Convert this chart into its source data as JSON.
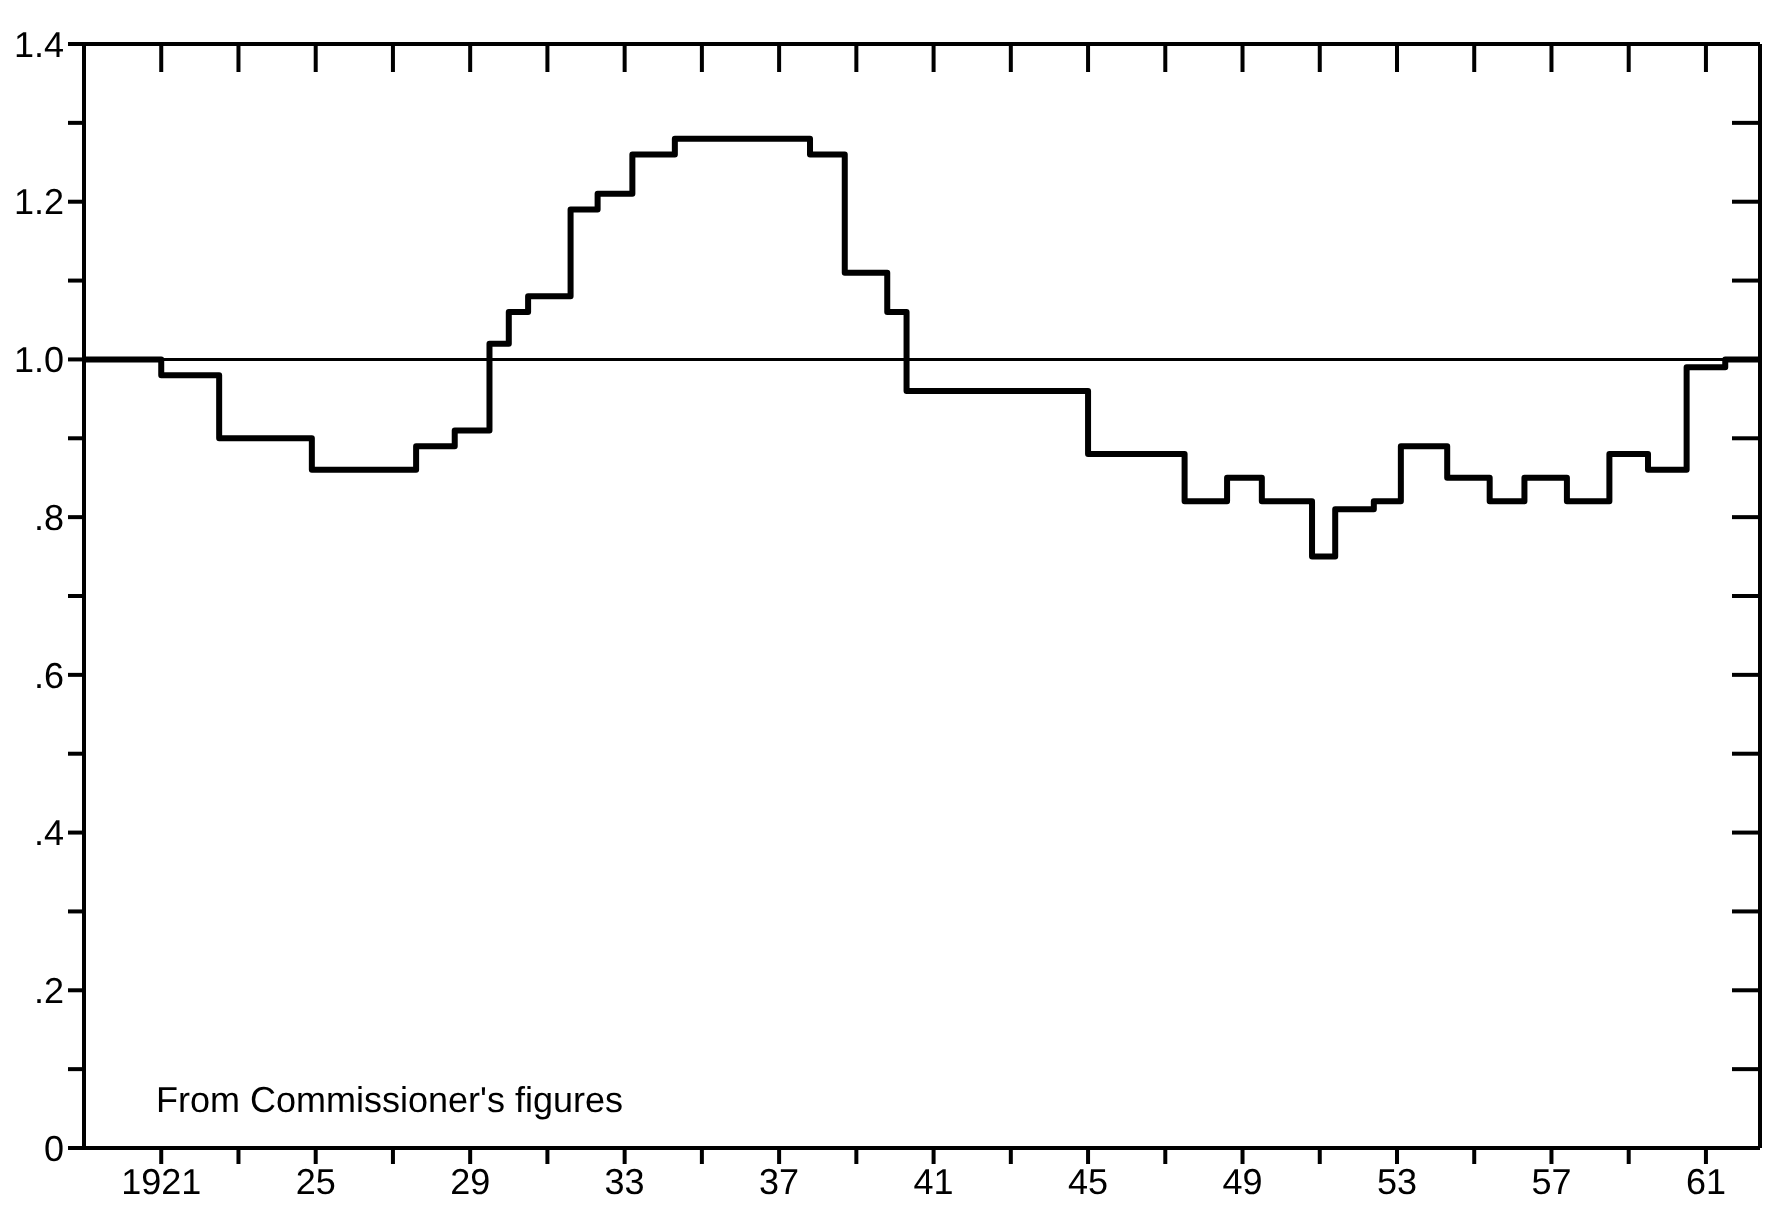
{
  "chart_data": {
    "type": "step",
    "color": "#000000",
    "x": [
      1919,
      1921,
      1922.5,
      1924.9,
      1927.6,
      1928.6,
      1929.5,
      1930,
      1930.5,
      1931.6,
      1932.3,
      1933.2,
      1934.3,
      1937.8,
      1938.7,
      1939.8,
      1940.3,
      1945,
      1947.5,
      1948.6,
      1949.5,
      1950.8,
      1951.4,
      1952.4,
      1953.1,
      1954.3,
      1955.4,
      1956.3,
      1957.4,
      1958.5,
      1959.5,
      1960.5,
      1961.5,
      1962.4
    ],
    "values": [
      1.0,
      0.98,
      0.9,
      0.86,
      0.89,
      0.91,
      1.02,
      1.06,
      1.08,
      1.19,
      1.21,
      1.26,
      1.28,
      1.26,
      1.11,
      1.06,
      0.96,
      0.88,
      0.82,
      0.85,
      0.82,
      0.75,
      0.81,
      0.82,
      0.89,
      0.85,
      0.82,
      0.85,
      0.82,
      0.88,
      0.86,
      0.99,
      1.0,
      1.0
    ],
    "xlim": [
      1919,
      1962.4
    ],
    "xticks": [
      {
        "value": 1921,
        "label": "1921"
      },
      {
        "value": 1923,
        "label": null
      },
      {
        "value": 1925,
        "label": "25"
      },
      {
        "value": 1927,
        "label": null
      },
      {
        "value": 1929,
        "label": "29"
      },
      {
        "value": 1931,
        "label": null
      },
      {
        "value": 1933,
        "label": "33"
      },
      {
        "value": 1935,
        "label": null
      },
      {
        "value": 1937,
        "label": "37"
      },
      {
        "value": 1939,
        "label": null
      },
      {
        "value": 1941,
        "label": "41"
      },
      {
        "value": 1943,
        "label": null
      },
      {
        "value": 1945,
        "label": "45"
      },
      {
        "value": 1947,
        "label": null
      },
      {
        "value": 1949,
        "label": "49"
      },
      {
        "value": 1951,
        "label": null
      },
      {
        "value": 1953,
        "label": "53"
      },
      {
        "value": 1955,
        "label": null
      },
      {
        "value": 1957,
        "label": "57"
      },
      {
        "value": 1959,
        "label": null
      },
      {
        "value": 1961,
        "label": "61"
      }
    ],
    "ylim": [
      0,
      1.4
    ],
    "yticks": [
      0,
      {
        "value": 0.1,
        "label": null
      },
      {
        "value": 0.2,
        "label": ".2"
      },
      {
        "value": 0.3,
        "label": null
      },
      {
        "value": 0.4,
        "label": ".4"
      },
      {
        "value": 0.5,
        "label": null
      },
      {
        "value": 0.6,
        "label": ".6"
      },
      {
        "value": 0.7,
        "label": null
      },
      {
        "value": 0.8,
        "label": ".8"
      },
      {
        "value": 0.9,
        "label": null
      },
      {
        "value": 1.0,
        "label": "1.0"
      },
      {
        "value": 1.1,
        "label": null
      },
      {
        "value": 1.2,
        "label": "1.2"
      },
      {
        "value": 1.3,
        "label": null
      },
      1.4
    ],
    "ref_lines": [
      {
        "axis": "y",
        "value": 1.0,
        "label": null,
        "color": "#000000"
      }
    ],
    "annotations": [
      "From Commissioner's figures"
    ],
    "marker": "none",
    "line_style": "solid"
  }
}
